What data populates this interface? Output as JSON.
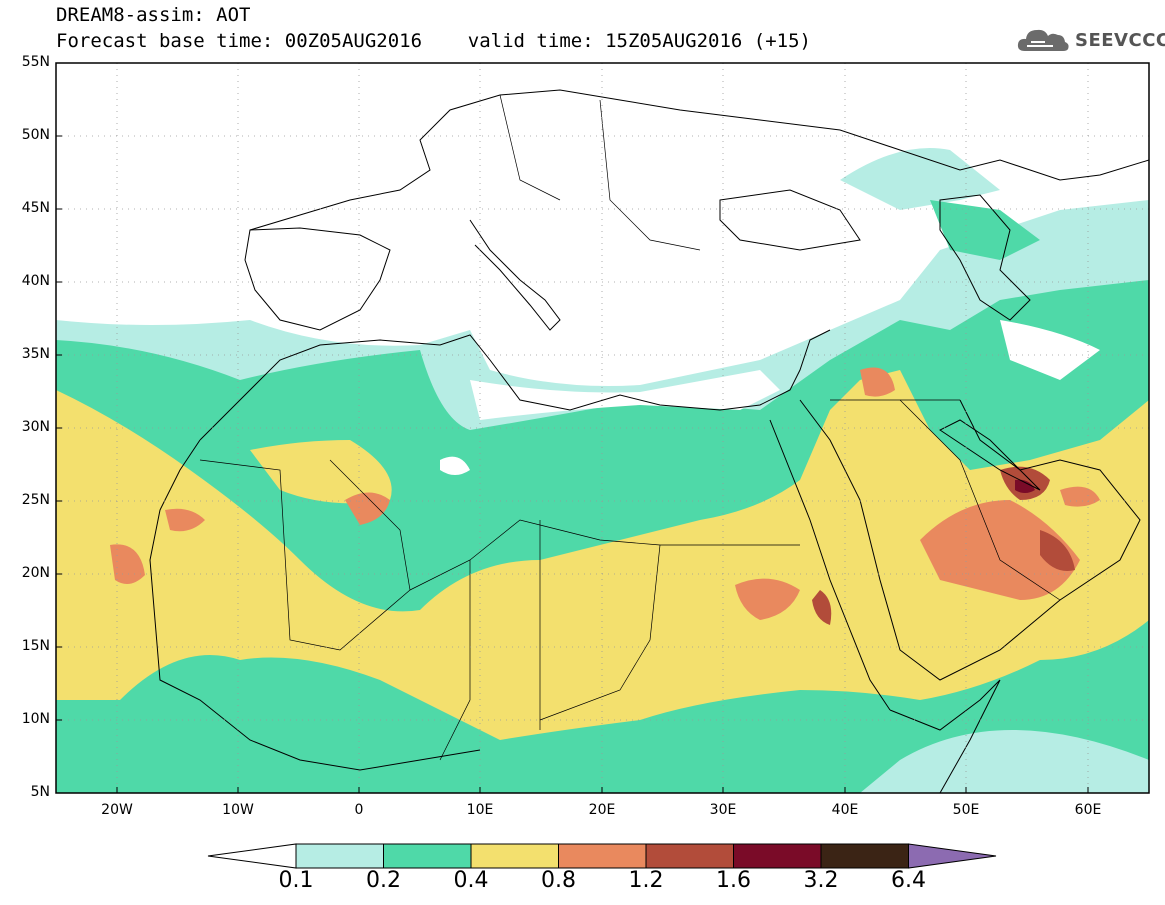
{
  "header": {
    "line1": "DREAM8-assim: AOT",
    "line2": "Forecast base time: 00Z05AUG2016    valid time: 15Z05AUG2016 (+15)"
  },
  "logo": {
    "text": "SEEVCCC",
    "icon": "cloud-icon"
  },
  "axes": {
    "lat_labels": [
      "55N",
      "50N",
      "45N",
      "40N",
      "35N",
      "30N",
      "25N",
      "20N",
      "15N",
      "10N",
      "5N"
    ],
    "lon_labels": [
      "20W",
      "10W",
      "0",
      "10E",
      "20E",
      "30E",
      "40E",
      "50E",
      "60E"
    ]
  },
  "colorbar": {
    "labels": [
      "0.1",
      "0.2",
      "0.4",
      "0.8",
      "1.2",
      "1.6",
      "3.2",
      "6.4"
    ],
    "colors": [
      "#b6ede4",
      "#4fd9a8",
      "#f3e06e",
      "#e9895e",
      "#b24c3a",
      "#7a0b28",
      "#3b2415",
      "#8c6bb1"
    ]
  }
}
